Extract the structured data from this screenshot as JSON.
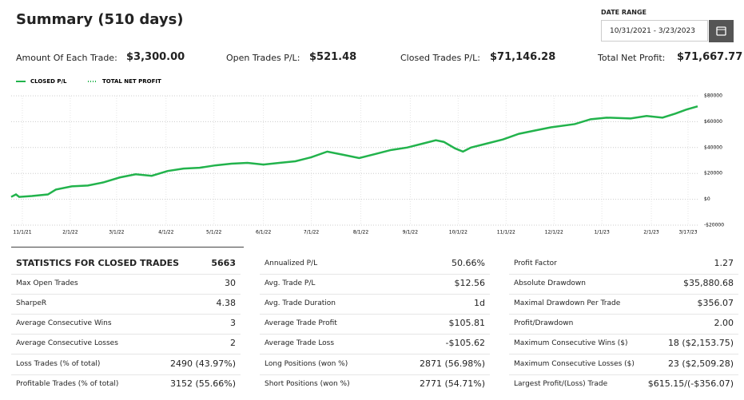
{
  "header": {
    "title": "Summary (510 days)",
    "date_range_label": "DATE RANGE",
    "date_range": "10/31/2021 - 3/23/2023"
  },
  "summary": [
    {
      "label": "Amount Of Each Trade:",
      "value": "$3,300.00"
    },
    {
      "label": "Open Trades P/L:",
      "value": "$521.48"
    },
    {
      "label": "Closed Trades P/L:",
      "value": "$71,146.28"
    },
    {
      "label": "Total Net Profit:",
      "value": "$71,667.77"
    }
  ],
  "chart_data": {
    "type": "line",
    "x": [
      0,
      3,
      5,
      13,
      23,
      28,
      38,
      48,
      58,
      68,
      78,
      88,
      98,
      108,
      118,
      128,
      138,
      148,
      158,
      168,
      178,
      188,
      198,
      208,
      218,
      228,
      238,
      248,
      258,
      266,
      271,
      278,
      283,
      288,
      298,
      308,
      318,
      328,
      338,
      353,
      363,
      373,
      388,
      398,
      408,
      416,
      423,
      430
    ],
    "series": [
      {
        "name": "CLOSED P/L",
        "color": "#22b34c",
        "style": "solid",
        "values": [
          1875,
          3750,
          1875,
          2500,
          3750,
          7500,
          10000,
          10625,
          13125,
          16875,
          19375,
          18125,
          21875,
          23750,
          24375,
          26250,
          27500,
          28125,
          26875,
          28125,
          29375,
          32500,
          36875,
          34375,
          31875,
          35000,
          38125,
          40000,
          43125,
          45625,
          44375,
          39375,
          36875,
          40000,
          43125,
          46250,
          50625,
          53125,
          55625,
          58125,
          61875,
          63125,
          62500,
          64375,
          63125,
          66250,
          69375,
          71875
        ]
      },
      {
        "name": "TOTAL NET PROFIT",
        "color": "#22b34c",
        "style": "dotted",
        "values": [
          1875,
          3750,
          1875,
          2500,
          3750,
          7500,
          10000,
          10625,
          13125,
          16875,
          19375,
          18125,
          21875,
          23750,
          24375,
          26250,
          27500,
          28125,
          26875,
          28125,
          29375,
          32500,
          36875,
          34375,
          31875,
          35000,
          38125,
          40000,
          43125,
          45625,
          44375,
          39375,
          36875,
          40000,
          43125,
          46250,
          50625,
          53125,
          55625,
          58125,
          61875,
          63125,
          62500,
          64375,
          63125,
          66250,
          69375,
          71875
        ]
      }
    ],
    "xlim": [
      0,
      431
    ],
    "xticks": [
      {
        "value": 7,
        "label": "11/1/21"
      },
      {
        "value": 37,
        "label": "2/1/22"
      },
      {
        "value": 66,
        "label": "3/1/22"
      },
      {
        "value": 97,
        "label": "4/1/22"
      },
      {
        "value": 127,
        "label": "5/1/22"
      },
      {
        "value": 158,
        "label": "6/1/22"
      },
      {
        "value": 188,
        "label": "7/1/22"
      },
      {
        "value": 219,
        "label": "8/1/22"
      },
      {
        "value": 250,
        "label": "9/1/22"
      },
      {
        "value": 280,
        "label": "10/1/22"
      },
      {
        "value": 310,
        "label": "11/1/22"
      },
      {
        "value": 340,
        "label": "12/1/22"
      },
      {
        "value": 370,
        "label": "1/1/23"
      },
      {
        "value": 401,
        "label": "2/1/23"
      },
      {
        "value": 424,
        "label": "3/17/23"
      }
    ],
    "ylim": [
      -20000,
      80000
    ],
    "yticks": [
      {
        "value": 80000,
        "label": "$80000"
      },
      {
        "value": 60000,
        "label": "$60000"
      },
      {
        "value": 40000,
        "label": "$40000"
      },
      {
        "value": 20000,
        "label": "$20000"
      },
      {
        "value": 0,
        "label": "$0"
      },
      {
        "value": -20000,
        "label": "-$20000"
      }
    ],
    "grid": true
  },
  "stats": [
    [
      {
        "label": "STATISTICS FOR CLOSED TRADES",
        "value": "5663"
      },
      {
        "label": "Max Open Trades",
        "value": "30"
      },
      {
        "label": "SharpeR",
        "value": "4.38"
      },
      {
        "label": "Average Consecutive Wins",
        "value": "3"
      },
      {
        "label": "Average Consecutive Losses",
        "value": "2"
      },
      {
        "label": "Loss Trades (% of total)",
        "value": "2490 (43.97%)"
      },
      {
        "label": "Profitable Trades (% of total)",
        "value": "3152 (55.66%)"
      }
    ],
    [
      {
        "label": "Annualized P/L",
        "value": "50.66%"
      },
      {
        "label": "Avg. Trade P/L",
        "value": "$12.56"
      },
      {
        "label": "Avg. Trade Duration",
        "value": "1d"
      },
      {
        "label": "Average Trade Profit",
        "value": "$105.81"
      },
      {
        "label": "Average Trade Loss",
        "value": "-$105.62"
      },
      {
        "label": "Long Positions (won %)",
        "value": "2871 (56.98%)"
      },
      {
        "label": "Short Positions (won %)",
        "value": "2771 (54.71%)"
      }
    ],
    [
      {
        "label": "Profit Factor",
        "value": "1.27"
      },
      {
        "label": "Absolute Drawdown",
        "value": "$35,880.68"
      },
      {
        "label": "Maximal Drawdown Per Trade",
        "value": "$356.07"
      },
      {
        "label": "Profit/Drawdown",
        "value": "2.00"
      },
      {
        "label": "Maximum Consecutive Wins ($)",
        "value": "18 ($2,153.75)"
      },
      {
        "label": "Maximum Consecutive Losses ($)",
        "value": "23 ($2,509.28)"
      },
      {
        "label": "Largest Profit/(Loss) Trade",
        "value": "$615.15/(-$356.07)"
      }
    ]
  ]
}
